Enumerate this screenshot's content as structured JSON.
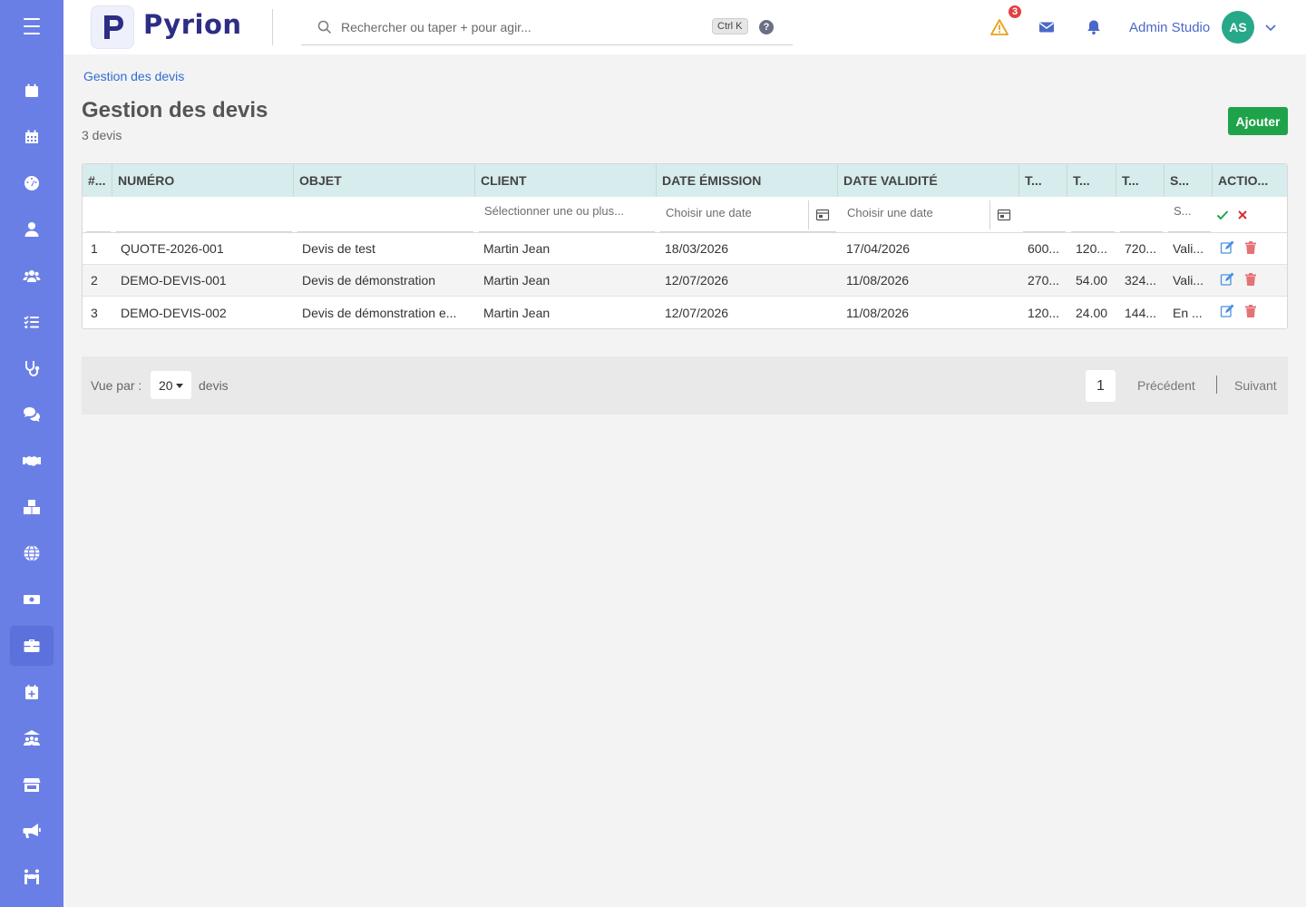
{
  "app": {
    "name": "Pyrion"
  },
  "header": {
    "search_placeholder": "Rechercher ou taper + pour agir...",
    "shortcut": "Ctrl K",
    "help": "?",
    "alert_count": "3",
    "user_name": "Admin Studio",
    "user_initials": "AS"
  },
  "sidebar": {
    "items": [
      {
        "icon": "menu-icon"
      },
      {
        "icon": "calendar-icon"
      },
      {
        "icon": "calendar-grid-icon"
      },
      {
        "icon": "dashboard-gauge-icon"
      },
      {
        "icon": "user-icon"
      },
      {
        "icon": "users-icon"
      },
      {
        "icon": "task-list-icon"
      },
      {
        "icon": "stethoscope-icon"
      },
      {
        "icon": "chat-icon"
      },
      {
        "icon": "handshake-icon"
      },
      {
        "icon": "boxes-icon"
      },
      {
        "icon": "globe-icon"
      },
      {
        "icon": "money-icon"
      },
      {
        "icon": "briefcase-icon",
        "active": true
      },
      {
        "icon": "calendar-plus-icon"
      },
      {
        "icon": "team-building-icon"
      },
      {
        "icon": "store-icon"
      },
      {
        "icon": "megaphone-icon"
      },
      {
        "icon": "people-carry-icon"
      }
    ]
  },
  "page": {
    "breadcrumb": "Gestion des devis",
    "title": "Gestion des devis",
    "subtitle": "3 devis",
    "add_label": "Ajouter"
  },
  "table": {
    "columns": [
      "#...",
      "NUMÉRO",
      "OBJET",
      "CLIENT",
      "DATE ÉMISSION",
      "DATE VALIDITÉ",
      "T...",
      "T...",
      "T...",
      "S...",
      "ACTIO..."
    ],
    "filters": {
      "client_placeholder": "Sélectionner une ou plus...",
      "date_emission_placeholder": "Choisir une date",
      "date_validite_placeholder": "Choisir une date",
      "status_placeholder": "S..."
    },
    "rows": [
      [
        "1",
        "QUOTE-2026-001",
        "Devis de test",
        "Martin Jean",
        "18/03/2026",
        "17/04/2026",
        "600...",
        "120...",
        "720...",
        "Vali..."
      ],
      [
        "2",
        "DEMO-DEVIS-001",
        "Devis de démonstration",
        "Martin Jean",
        "12/07/2026",
        "11/08/2026",
        "270...",
        "54.00",
        "324...",
        "Vali..."
      ],
      [
        "3",
        "DEMO-DEVIS-002",
        "Devis de démonstration e...",
        "Martin Jean",
        "12/07/2026",
        "11/08/2026",
        "120...",
        "24.00",
        "144...",
        "En ..."
      ]
    ]
  },
  "pagination": {
    "view_label": "Vue par :",
    "page_size": "20",
    "unit": "devis",
    "current_page": "1",
    "prev": "Précédent",
    "next": "Suivant"
  },
  "colors": {
    "sidebar": "#6a7fe6",
    "brand": "#2d2d86",
    "add_button": "#1fa34a",
    "table_header": "#d7ecec",
    "link": "#2f6dd0",
    "avatar": "#27a889",
    "badge": "#e24141"
  }
}
